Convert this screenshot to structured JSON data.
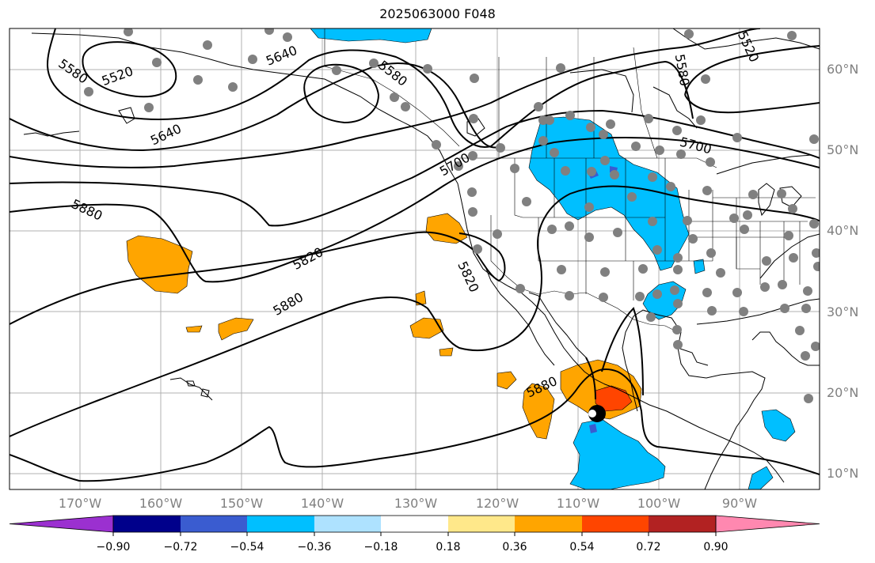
{
  "title": "2025063000 F048",
  "map": {
    "lon_ticks": [
      "170°W",
      "160°W",
      "150°W",
      "140°W",
      "130°W",
      "120°W",
      "110°W",
      "100°W",
      "90°W"
    ],
    "lat_ticks": [
      "10°N",
      "20°N",
      "30°N",
      "40°N",
      "50°N",
      "60°N"
    ],
    "contour_labels": [
      "5520",
      "5580",
      "5640",
      "5580",
      "5580",
      "5640",
      "5700",
      "5520",
      "5700",
      "5880",
      "5820",
      "5820",
      "5880",
      "5880"
    ],
    "storm_marker": "tropical-cyclone-symbol",
    "station_color": "#808080"
  },
  "colorbar": {
    "tick_labels": [
      "−0.90",
      "−0.72",
      "−0.54",
      "−0.36",
      "−0.18",
      "0.18",
      "0.36",
      "0.54",
      "0.72",
      "0.90"
    ],
    "colors": [
      "#9b30d0",
      "#00008b",
      "#3a5cd0",
      "#00bfff",
      "#aee2ff",
      "#ffffff",
      "#ffe88a",
      "#ffa500",
      "#ff4500",
      "#b22222",
      "#ff88b0"
    ]
  }
}
